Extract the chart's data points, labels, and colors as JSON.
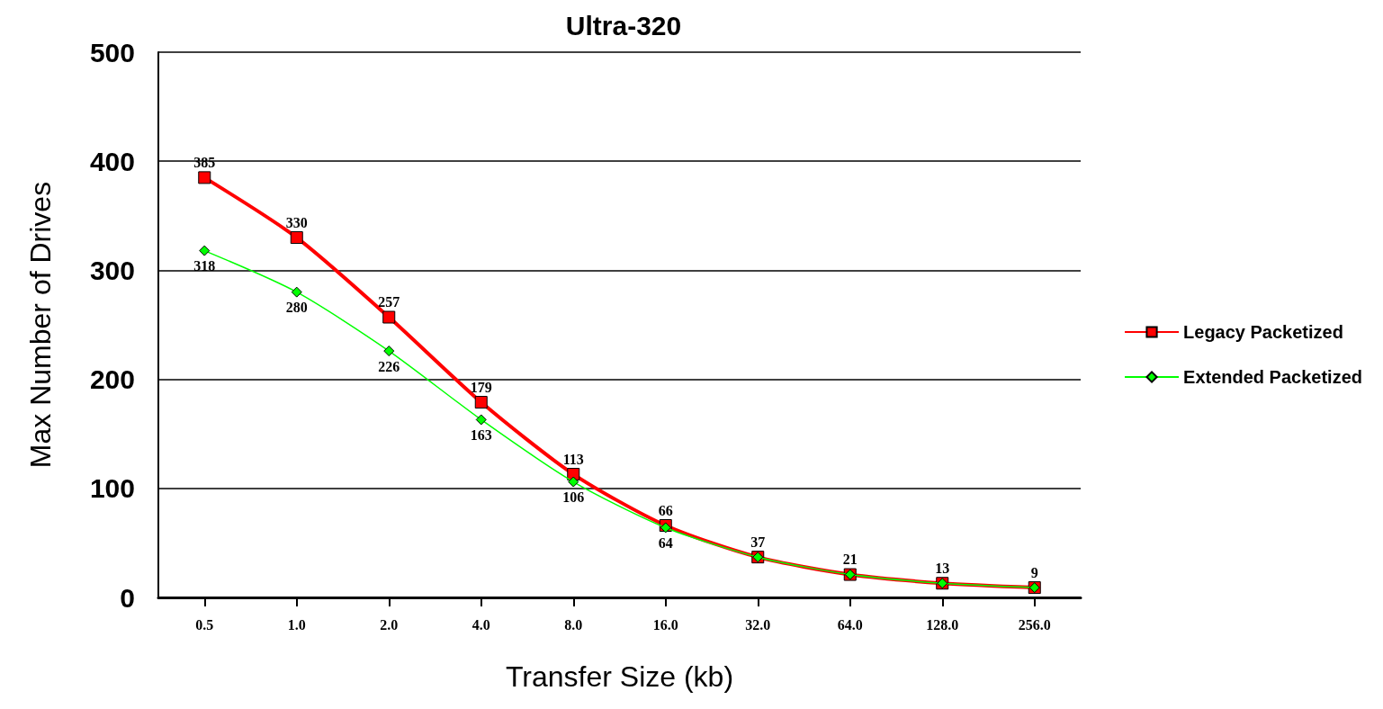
{
  "chart_data": {
    "type": "line",
    "title": "Ultra-320",
    "xlabel": "Transfer Size (kb)",
    "ylabel": "Max Number of Drives",
    "categories": [
      "0.5",
      "1.0",
      "2.0",
      "4.0",
      "8.0",
      "16.0",
      "32.0",
      "64.0",
      "128.0",
      "256.0"
    ],
    "series": [
      {
        "name": "Legacy Packetized",
        "color": "#ff0000",
        "marker": "square",
        "values": [
          385,
          330,
          257,
          179,
          113,
          66,
          37,
          21,
          13,
          9
        ],
        "value_labels": [
          "385",
          "330",
          "257",
          "179",
          "113",
          "66",
          "37",
          "21",
          "13",
          "9"
        ]
      },
      {
        "name": "Extended Packetized",
        "color": "#00ff00",
        "marker": "diamond",
        "values": [
          318,
          280,
          226,
          163,
          106,
          64,
          37,
          21,
          13,
          9
        ],
        "value_labels": [
          "318",
          "280",
          "226",
          "163",
          "106",
          "64",
          null,
          null,
          null,
          null
        ]
      }
    ],
    "ylim": [
      0,
      500
    ],
    "yticks": [
      0,
      100,
      200,
      300,
      400,
      500
    ],
    "grid": "y",
    "legend": "right",
    "line_style": "solid"
  }
}
